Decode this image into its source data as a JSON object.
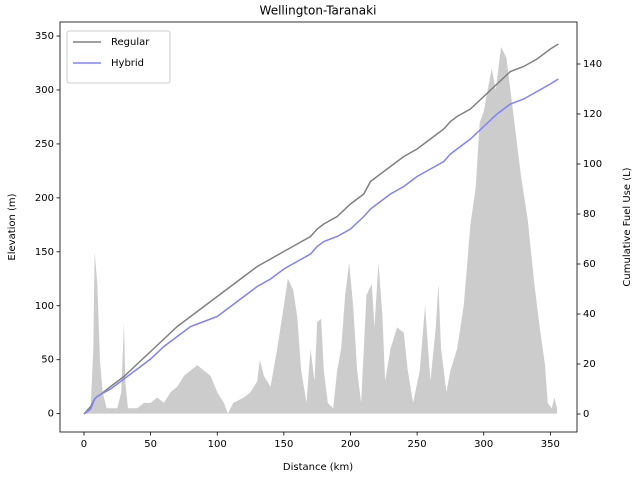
{
  "chart_data": {
    "type": "line",
    "title": "Wellington-Taranaki",
    "x_label": "Distance (km)",
    "y_label": "Elevation (m)",
    "y2_label": "Cumulative Fuel Use (L)",
    "xlim": [
      -18,
      370
    ],
    "xticks": [
      0,
      50,
      100,
      150,
      200,
      250,
      300,
      350
    ],
    "ylim": [
      -17,
      363
    ],
    "yticks": [
      0,
      50,
      100,
      150,
      200,
      250,
      300,
      350
    ],
    "y2lim": [
      -7.2,
      156.8
    ],
    "y2ticks": [
      0,
      20,
      40,
      60,
      80,
      100,
      120,
      140
    ],
    "legend": "upper left",
    "series": [
      {
        "type": "area",
        "color": "#cccccc",
        "x": [
          0,
          5,
          7,
          8,
          10,
          12,
          14,
          17,
          20,
          25,
          28,
          30,
          31,
          33,
          40,
          45,
          50,
          55,
          60,
          65,
          70,
          75,
          80,
          85,
          90,
          95,
          100,
          105,
          108,
          112,
          120,
          125,
          130,
          132,
          135,
          140,
          145,
          150,
          153,
          157,
          160,
          163,
          167,
          170,
          173,
          175,
          178,
          180,
          183,
          187,
          190,
          193,
          196,
          199,
          202,
          205,
          208,
          212,
          216,
          218,
          221,
          224,
          226,
          230,
          235,
          240,
          243,
          247,
          252,
          256,
          260,
          264,
          266,
          268,
          272,
          275,
          280,
          285,
          290,
          294,
          297,
          300,
          303,
          306,
          309,
          313,
          317,
          320,
          324,
          328,
          333,
          338,
          342,
          346,
          348,
          351,
          353,
          355
        ],
        "values": [
          0,
          5,
          60,
          150,
          120,
          50,
          20,
          5,
          5,
          5,
          20,
          85,
          30,
          5,
          5,
          10,
          10,
          15,
          10,
          20,
          25,
          35,
          40,
          45,
          40,
          35,
          20,
          10,
          0,
          10,
          15,
          20,
          30,
          50,
          35,
          25,
          60,
          100,
          125,
          115,
          90,
          40,
          10,
          60,
          30,
          85,
          88,
          40,
          10,
          5,
          40,
          60,
          110,
          140,
          100,
          40,
          10,
          110,
          120,
          80,
          140,
          90,
          30,
          60,
          80,
          75,
          40,
          10,
          40,
          100,
          30,
          80,
          120,
          60,
          20,
          40,
          60,
          100,
          175,
          210,
          270,
          280,
          300,
          320,
          300,
          340,
          330,
          300,
          260,
          220,
          180,
          120,
          80,
          45,
          10,
          5,
          15,
          5
        ]
      },
      {
        "name": "Regular",
        "color": "#808080",
        "axis": "y2",
        "x": [
          0,
          5,
          8,
          10,
          13,
          20,
          30,
          40,
          50,
          60,
          70,
          80,
          90,
          100,
          110,
          120,
          130,
          140,
          150,
          160,
          170,
          175,
          180,
          190,
          200,
          210,
          215,
          220,
          230,
          240,
          250,
          260,
          270,
          275,
          280,
          290,
          300,
          310,
          320,
          330,
          340,
          350,
          356
        ],
        "values": [
          0,
          3,
          6,
          7,
          8,
          11,
          15,
          20,
          25,
          30,
          35,
          39,
          43,
          47,
          51,
          55,
          59,
          62,
          65,
          68,
          71,
          74,
          76,
          79,
          84,
          88,
          93,
          95,
          99,
          103,
          106,
          110,
          114,
          117,
          119,
          122,
          127,
          132,
          137,
          139,
          142,
          146,
          148
        ]
      },
      {
        "name": "Hybrid",
        "color": "#8080ff",
        "axis": "y2",
        "x": [
          0,
          5,
          8,
          10,
          13,
          20,
          30,
          40,
          50,
          60,
          70,
          80,
          90,
          100,
          110,
          120,
          130,
          140,
          150,
          160,
          170,
          175,
          180,
          190,
          200,
          210,
          215,
          220,
          230,
          240,
          250,
          260,
          270,
          275,
          280,
          290,
          300,
          310,
          320,
          330,
          340,
          350,
          356
        ],
        "values": [
          0,
          2,
          6,
          7,
          8,
          10,
          14,
          18,
          22,
          27,
          31,
          35,
          37,
          39,
          43,
          47,
          51,
          54,
          58,
          61,
          64,
          67,
          69,
          71,
          74,
          79,
          82,
          84,
          88,
          91,
          95,
          98,
          101,
          104,
          106,
          110,
          115,
          120,
          124,
          126,
          129,
          132,
          134
        ]
      }
    ]
  }
}
